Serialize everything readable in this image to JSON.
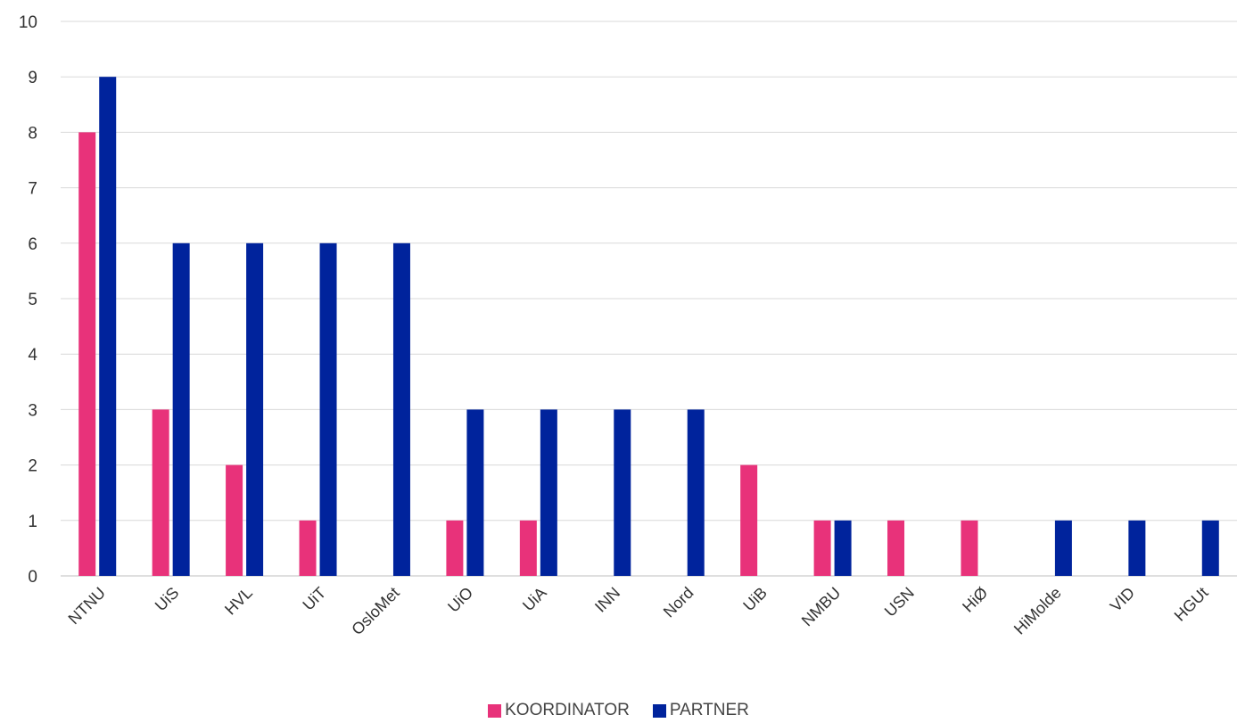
{
  "chart_data": {
    "type": "bar",
    "categories": [
      "NTNU",
      "UiS",
      "HVL",
      "UiT",
      "OsloMet",
      "UiO",
      "UiA",
      "INN",
      "Nord",
      "UiB",
      "NMBU",
      "USN",
      "HiØ",
      "HiMolde",
      "VID",
      "HGUt"
    ],
    "series": [
      {
        "name": "KOORDINATOR",
        "color": "#e8327a",
        "values": [
          8,
          3,
          2,
          1,
          0,
          1,
          1,
          0,
          0,
          2,
          1,
          1,
          1,
          0,
          0,
          0
        ]
      },
      {
        "name": "PARTNER",
        "color": "#00239c",
        "values": [
          9,
          6,
          6,
          6,
          6,
          3,
          3,
          3,
          3,
          0,
          1,
          0,
          0,
          1,
          1,
          1
        ]
      }
    ],
    "ylim": [
      0,
      10
    ],
    "yticks": [
      "0",
      "1",
      "2",
      "3",
      "4",
      "5",
      "6",
      "7",
      "8",
      "9",
      "10"
    ],
    "grid": true,
    "legend_position": "bottom",
    "title": "",
    "xlabel": "",
    "ylabel": ""
  }
}
